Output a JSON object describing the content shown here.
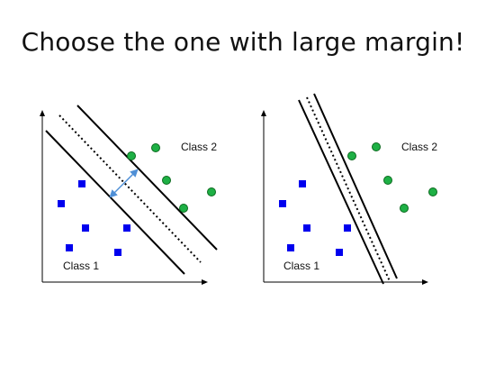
{
  "slide": {
    "title": "Choose the one with large margin!"
  },
  "left_plot": {
    "class1_label": "Class 1",
    "class2_label": "Class 2",
    "margin": "large",
    "class1_points": 6,
    "class2_points": 5
  },
  "right_plot": {
    "class1_label": "Class 1",
    "class2_label": "Class 2",
    "margin": "small",
    "class1_points": 6,
    "class2_points": 5
  },
  "colors": {
    "class1": "#0000ee",
    "class2": "#1eb045",
    "class2_stroke": "#0b6a1e",
    "margin_arrow": "#4f8fd6",
    "lines": "#000000"
  }
}
